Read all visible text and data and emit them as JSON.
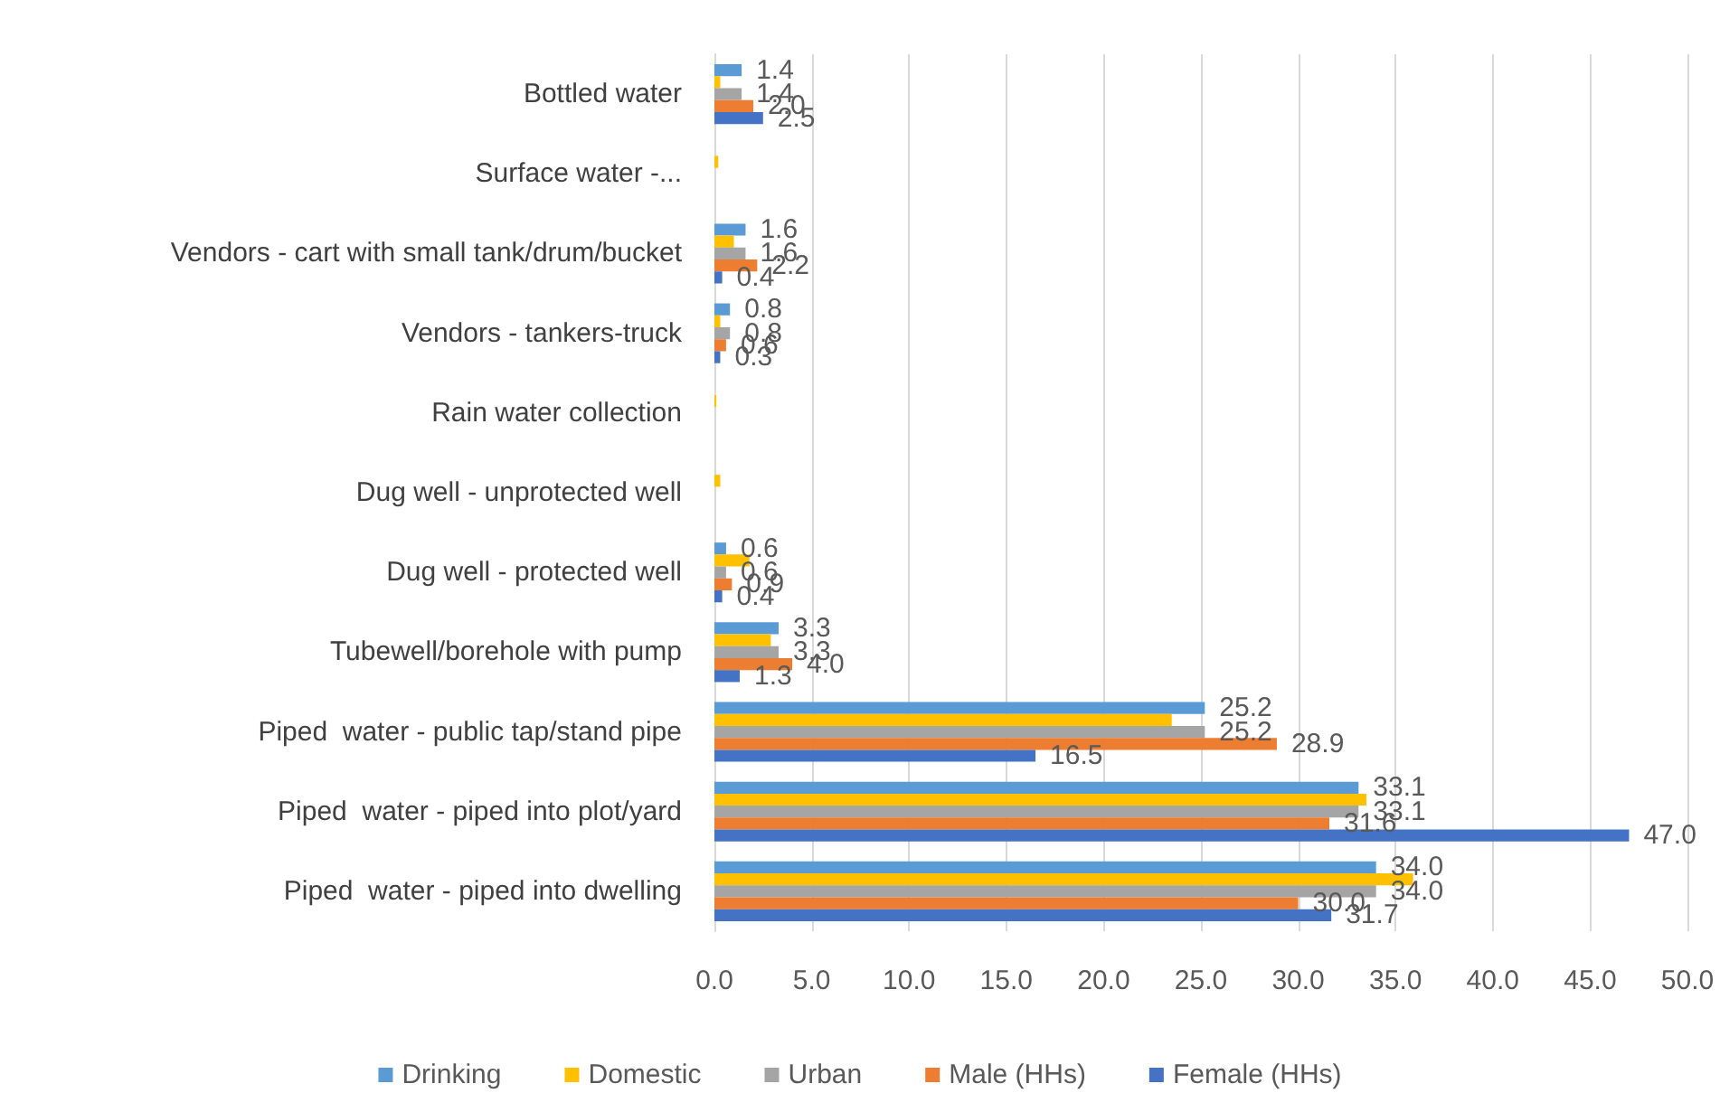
{
  "chart_data": {
    "type": "bar",
    "orientation": "horizontal",
    "categories": [
      "Bottled water",
      "Surface water -...",
      "Vendors - cart with small tank/drum/bucket",
      "Vendors - tankers-truck",
      "Rain water collection",
      "Dug well - unprotected well",
      "Dug well - protected well",
      "Tubewell/borehole with pump",
      "Piped  water - public tap/stand pipe",
      "Piped  water - piped into plot/yard",
      "Piped  water - piped into dwelling"
    ],
    "series": [
      {
        "name": "Drinking",
        "color": "#5b9bd5",
        "values": [
          1.4,
          null,
          1.6,
          0.8,
          null,
          null,
          0.6,
          3.3,
          25.2,
          33.1,
          34.0
        ],
        "value_labels": [
          "1.4",
          null,
          "1.6",
          "0.8",
          null,
          null,
          "0.6",
          "3.3",
          "25.2",
          "33.1",
          "34.0"
        ]
      },
      {
        "name": "Domestic",
        "color": "#ffc000",
        "values": [
          0.3,
          0.2,
          1.0,
          0.3,
          0.1,
          0.3,
          1.8,
          2.9,
          23.5,
          33.5,
          35.9
        ]
      },
      {
        "name": "Urban",
        "color": "#a5a5a5",
        "values": [
          1.4,
          null,
          1.6,
          0.8,
          null,
          null,
          0.6,
          3.3,
          25.2,
          33.1,
          34.0
        ],
        "value_labels": [
          "1.4",
          null,
          "1.6",
          "0.8",
          null,
          null,
          "0.6",
          "3.3",
          "25.2",
          "33.1",
          "34.0"
        ]
      },
      {
        "name": "Male (HHs)",
        "color": "#ed7d31",
        "values": [
          2.0,
          null,
          2.2,
          0.6,
          null,
          null,
          0.9,
          4.0,
          28.9,
          31.6,
          30.0
        ],
        "value_labels": [
          "2.0",
          null,
          "2.2",
          "0.6",
          null,
          null,
          "0.9",
          "4.0",
          "28.9",
          "31.6",
          "30.0"
        ]
      },
      {
        "name": "Female (HHs)",
        "color": "#4472c4",
        "values": [
          2.5,
          null,
          0.4,
          0.3,
          null,
          null,
          0.4,
          1.3,
          16.5,
          47.0,
          31.7
        ],
        "value_labels": [
          "2.5",
          null,
          "0.4",
          "0.3",
          null,
          null,
          "0.4",
          "1.3",
          "16.5",
          "47.0",
          "31.7"
        ]
      }
    ],
    "xlim": [
      0,
      50
    ],
    "xticks": [
      {
        "value": 0,
        "label": "0.0"
      },
      {
        "value": 5,
        "label": "5.0"
      },
      {
        "value": 10,
        "label": "10.0"
      },
      {
        "value": 15,
        "label": "15.0"
      },
      {
        "value": 20,
        "label": "20.0"
      },
      {
        "value": 25,
        "label": "25.0"
      },
      {
        "value": 30,
        "label": "30.0"
      },
      {
        "value": 35,
        "label": "35.0"
      },
      {
        "value": 40,
        "label": "40.0"
      },
      {
        "value": 45,
        "label": "45.0"
      },
      {
        "value": 50,
        "label": "50.0"
      }
    ],
    "grid": "x",
    "legend": "bottom"
  }
}
